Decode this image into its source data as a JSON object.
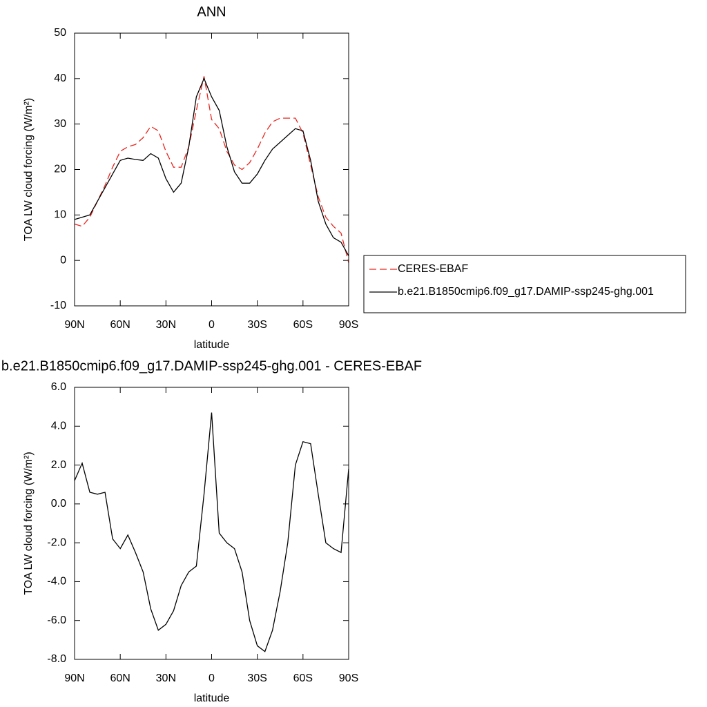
{
  "chart_data": [
    {
      "type": "line",
      "title": "ANN",
      "x_label": "latitude",
      "y_label": "TOA LW cloud forcing (W/m²)",
      "x": [
        90,
        85,
        80,
        75,
        70,
        65,
        60,
        55,
        50,
        45,
        40,
        35,
        30,
        25,
        20,
        15,
        10,
        5,
        0,
        -5,
        -10,
        -15,
        -20,
        -25,
        -30,
        -35,
        -40,
        -45,
        -50,
        -55,
        -60,
        -65,
        -70,
        -75,
        -80,
        -85,
        -90
      ],
      "series": [
        {
          "name": "CERES-EBAF",
          "color": "#e8261f",
          "line_style": "dashed",
          "values": [
            8,
            7.5,
            9.5,
            13,
            16.5,
            20.5,
            24,
            25,
            25.5,
            27,
            29.5,
            28.5,
            24,
            20.5,
            20.5,
            25,
            33,
            40.5,
            31,
            29,
            24,
            21,
            20,
            21.5,
            24.5,
            28,
            30.5,
            31.3,
            31.3,
            31.3,
            28,
            21,
            14,
            9.5,
            7.5,
            6,
            -0.5
          ]
        },
        {
          "name": "b.e21.B1850cmip6.f09_g17.DAMIP-ssp245-ghg.001",
          "color": "#000000",
          "line_style": "solid",
          "values": [
            9,
            9.5,
            10,
            13,
            16,
            19,
            22,
            22.5,
            22.2,
            22,
            23.5,
            22.5,
            18,
            15,
            17,
            25,
            36,
            40,
            36,
            33,
            25,
            19.5,
            17,
            17,
            19,
            22,
            24.5,
            26,
            27.5,
            29,
            28.5,
            22,
            13,
            8,
            5,
            4,
            1
          ]
        }
      ],
      "xlim": [
        90,
        -90
      ],
      "xticks": [
        {
          "value": 90,
          "label": "90N"
        },
        {
          "value": 60,
          "label": "60N"
        },
        {
          "value": 30,
          "label": "30N"
        },
        0,
        {
          "value": -30,
          "label": "30S"
        },
        {
          "value": -60,
          "label": "60S"
        },
        {
          "value": -90,
          "label": "90S"
        }
      ],
      "ylim": [
        -10,
        50
      ],
      "yticks": [
        -10,
        0,
        10,
        20,
        30,
        40,
        50
      ],
      "legend": "right"
    },
    {
      "type": "line",
      "title": "b.e21.B1850cmip6.f09_g17.DAMIP-ssp245-ghg.001 - CERES-EBAF",
      "x_label": "latitude",
      "y_label": "TOA LW cloud forcing (W/m²)",
      "x": [
        90,
        85,
        80,
        75,
        70,
        65,
        60,
        55,
        50,
        45,
        40,
        35,
        30,
        25,
        20,
        15,
        10,
        5,
        0,
        -5,
        -10,
        -15,
        -20,
        -25,
        -30,
        -35,
        -40,
        -45,
        -50,
        -55,
        -60,
        -65,
        -70,
        -75,
        -80,
        -85,
        -90
      ],
      "series": [
        {
          "color": "#000000",
          "line_style": "solid",
          "values": [
            1.2,
            2.1,
            0.6,
            0.5,
            0.6,
            -1.8,
            -2.3,
            -1.6,
            -2.5,
            -3.5,
            -5.4,
            -6.5,
            -6.2,
            -5.5,
            -4.2,
            -3.5,
            -3.2,
            0.5,
            4.7,
            -1.5,
            -2.0,
            -2.3,
            -3.5,
            -6.0,
            -7.3,
            -7.6,
            -6.5,
            -4.5,
            -2.0,
            2.0,
            3.2,
            3.1,
            0.5,
            -2.0,
            -2.3,
            -2.5,
            1.8
          ]
        }
      ],
      "xlim": [
        90,
        -90
      ],
      "xticks": [
        {
          "value": 90,
          "label": "90N"
        },
        {
          "value": 60,
          "label": "60N"
        },
        {
          "value": 30,
          "label": "30N"
        },
        0,
        {
          "value": -30,
          "label": "30S"
        },
        {
          "value": -60,
          "label": "60S"
        },
        {
          "value": -90,
          "label": "90S"
        }
      ],
      "ylim": [
        -8,
        6
      ],
      "yticks": [
        {
          "value": -8,
          "label": "-8.0"
        },
        {
          "value": -6,
          "label": "-6.0"
        },
        {
          "value": -4,
          "label": "-4.0"
        },
        {
          "value": -2,
          "label": "-2.0"
        },
        {
          "value": 0,
          "label": "0.0"
        },
        {
          "value": 2,
          "label": "2.0"
        },
        {
          "value": 4,
          "label": "4.0"
        },
        {
          "value": 6,
          "label": "6.0"
        }
      ]
    }
  ]
}
